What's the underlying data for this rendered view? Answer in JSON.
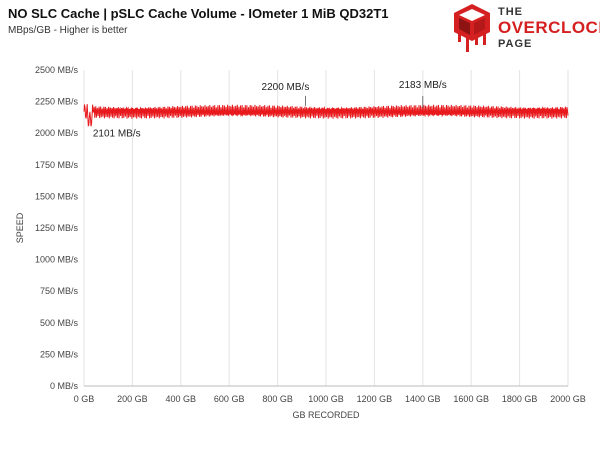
{
  "chart_data": {
    "type": "line",
    "title": "NO SLC Cache | pSLC Cache Volume - IOmeter 1 MiB QD32T1",
    "subtitle": "MBps/GB - Higher is better",
    "xlabel": "GB RECORDED",
    "ylabel": "SPEED",
    "xlim": [
      0,
      2000
    ],
    "ylim": [
      0,
      2500
    ],
    "x_ticks": [
      "0 GB",
      "200 GB",
      "400 GB",
      "600 GB",
      "800 GB",
      "1000 GB",
      "1200 GB",
      "1400 GB",
      "1600 GB",
      "1800 GB",
      "2000 GB"
    ],
    "y_ticks": [
      "0 MB/s",
      "250 MB/s",
      "500 MB/s",
      "750 MB/s",
      "1000 MB/s",
      "1250 MB/s",
      "1500 MB/s",
      "1750 MB/s",
      "2000 MB/s",
      "2250 MB/s",
      "2500 MB/s"
    ],
    "grid": "vertical",
    "series": [
      {
        "color": "#e8191c",
        "x_range": [
          0,
          2000
        ],
        "baseline": 2170,
        "amplitude_min": 2110,
        "amplitude_max": 2220
      }
    ],
    "annotations": [
      {
        "text": "2101 MB/s",
        "x": 20,
        "y": 2101
      },
      {
        "text": "2200 MB/s",
        "x": 915,
        "y": 2200
      },
      {
        "text": "2183 MB/s",
        "x": 1400,
        "y": 2183
      }
    ]
  },
  "logo": {
    "the": "THE",
    "main": "OVERCLOCK",
    "page": "PAGE",
    "color": "#d42020"
  }
}
